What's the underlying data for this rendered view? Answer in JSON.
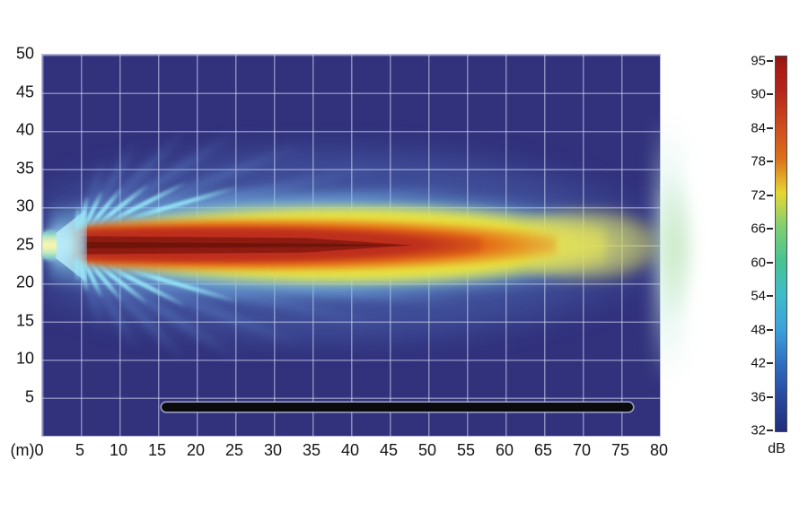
{
  "figure": {
    "kind": "sound-pressure-level heat map",
    "background": "#ffffff"
  },
  "axes": {
    "x": {
      "unit": "m",
      "ticks": [
        {
          "label": "(m)0",
          "value": 0,
          "dx": -16
        },
        {
          "label": "5",
          "value": 5
        },
        {
          "label": "10",
          "value": 10
        },
        {
          "label": "15",
          "value": 15
        },
        {
          "label": "20",
          "value": 20
        },
        {
          "label": "25",
          "value": 25
        },
        {
          "label": "30",
          "value": 30
        },
        {
          "label": "35",
          "value": 35
        },
        {
          "label": "40",
          "value": 40
        },
        {
          "label": "45",
          "value": 45
        },
        {
          "label": "50",
          "value": 50
        },
        {
          "label": "55",
          "value": 55
        },
        {
          "label": "60",
          "value": 60
        },
        {
          "label": "65",
          "value": 65
        },
        {
          "label": "70",
          "value": 70
        },
        {
          "label": "75",
          "value": 75
        },
        {
          "label": "80",
          "value": 80
        }
      ]
    },
    "y": {
      "unit": "m",
      "ticks": [
        {
          "label": "50",
          "value": 50
        },
        {
          "label": "45",
          "value": 45
        },
        {
          "label": "40",
          "value": 40
        },
        {
          "label": "35",
          "value": 35
        },
        {
          "label": "30",
          "value": 30
        },
        {
          "label": "25",
          "value": 25
        },
        {
          "label": "20",
          "value": 20
        },
        {
          "label": "15",
          "value": 15
        },
        {
          "label": "10",
          "value": 10
        },
        {
          "label": "5",
          "value": 5
        }
      ]
    }
  },
  "colorbar": {
    "unit_label": "dB",
    "ticks": [
      "95",
      "90",
      "84",
      "78",
      "72",
      "66",
      "60",
      "54",
      "48",
      "42",
      "36",
      "32"
    ]
  },
  "palette": {
    "plot_background": "#31317c",
    "grid_line": "#cdd2ee",
    "hot_core": "#8e1b12",
    "red": "#bd2f1c",
    "orange": "#e56a17",
    "yellow": "#e9e43e",
    "side_lobe_cyan": "#96e6f8",
    "halo_blue": "#5880ca",
    "receiver_bar": "#0b0b0e"
  },
  "chart_data": {
    "type": "heatmap",
    "title": "",
    "xlabel": "(m)",
    "ylabel": "m",
    "xlim": [
      0,
      80
    ],
    "ylim": [
      0,
      50
    ],
    "x_ticks": [
      0,
      5,
      10,
      15,
      20,
      25,
      30,
      35,
      40,
      45,
      50,
      55,
      60,
      65,
      70,
      75,
      80
    ],
    "y_ticks": [
      5,
      10,
      15,
      20,
      25,
      30,
      35,
      40,
      45,
      50
    ],
    "grid": true,
    "legend": "none",
    "colorbar": {
      "label": "dB",
      "tick_values": [
        95,
        90,
        84,
        78,
        72,
        66,
        60,
        54,
        48,
        42,
        36,
        32
      ],
      "range": [
        32,
        95
      ],
      "position": "right",
      "spacing": "equal steps between listed tick values"
    },
    "source": {
      "x_m": 0,
      "y_m": 25,
      "description": "loudspeaker at left edge radiating horizontally along y = 25 m"
    },
    "beam_contours_approx": [
      {
        "level_db": 95,
        "color": "dark red",
        "x_range_m": [
          4.5,
          43
        ],
        "y_halfwidth_m": 1.5
      },
      {
        "level_db": 90,
        "color": "red",
        "x_range_m": [
          4,
          53
        ],
        "y_halfwidth_m": 2.5
      },
      {
        "level_db": 84,
        "color": "orange",
        "x_range_m": [
          4,
          62
        ],
        "y_halfwidth_m": 3.4
      },
      {
        "level_db": 72,
        "color": "yellow",
        "x_range_m": [
          3.5,
          80
        ],
        "y_halfwidth_m": 5.3
      },
      {
        "level_db": 54,
        "color": "light blue",
        "x_range_m": [
          0,
          80
        ],
        "y_halfwidth_m": 7.5
      },
      {
        "level_db": 42,
        "color": "halo blue",
        "x_range_m": [
          0,
          80
        ],
        "y_halfwidth_m": 13
      }
    ],
    "side_lobes": "thin cyan streaks radiating from the source region (x 0-25 m) above and below the main beam at angles up to ~80 deg; fainter dark-blue lobes extend to ~40 m",
    "beam_exit": "pale green glow spills past the right plot edge around y 20-30 m",
    "receiver_bar": {
      "x_range_m": [
        15.5,
        76.5
      ],
      "y_m": 4,
      "description": "black horizontal bar (audience/receiver line)"
    }
  }
}
